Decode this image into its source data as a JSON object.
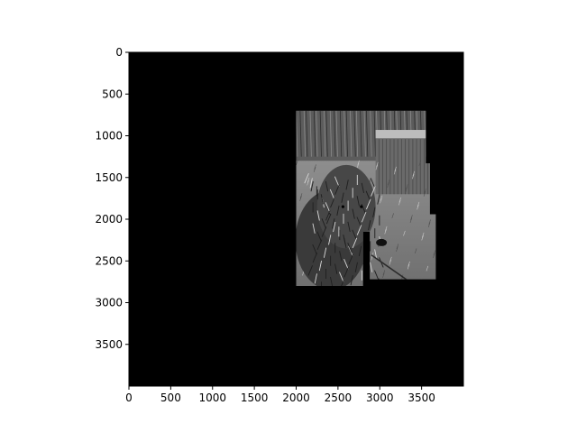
{
  "chart_data": {
    "type": "image",
    "title": "",
    "xlabel": "",
    "ylabel": "",
    "image_width": 4000,
    "image_height": 4000,
    "xlim": [
      0,
      4000
    ],
    "ylim": [
      4000,
      0
    ],
    "y_inverted": true,
    "grid": false,
    "background_color": "#000000",
    "image_description_icon": "grayscale-dog-photo-icon",
    "xticks": [
      {
        "value": 0,
        "label": "0"
      },
      {
        "value": 500,
        "label": "500"
      },
      {
        "value": 1000,
        "label": "1000"
      },
      {
        "value": 1500,
        "label": "1500"
      },
      {
        "value": 2000,
        "label": "2000"
      },
      {
        "value": 2500,
        "label": "2500"
      },
      {
        "value": 3000,
        "label": "3000"
      },
      {
        "value": 3500,
        "label": "3500"
      }
    ],
    "yticks": [
      {
        "value": 0,
        "label": "0"
      },
      {
        "value": 500,
        "label": "500"
      },
      {
        "value": 1000,
        "label": "1000"
      },
      {
        "value": 1500,
        "label": "1500"
      },
      {
        "value": 2000,
        "label": "2000"
      },
      {
        "value": 2500,
        "label": "2500"
      },
      {
        "value": 3000,
        "label": "3000"
      },
      {
        "value": 3500,
        "label": "3500"
      }
    ],
    "photo_regions": [
      {
        "x0": 2000,
        "y0": 700,
        "x1": 2800,
        "y1": 2800
      },
      {
        "x0": 2800,
        "y0": 700,
        "x1": 3550,
        "y1": 2150
      },
      {
        "x0": 2880,
        "y0": 2150,
        "x1": 3550,
        "y1": 2720
      },
      {
        "x0": 3550,
        "y0": 1330,
        "x1": 3600,
        "y1": 2720
      },
      {
        "x0": 3600,
        "y0": 1940,
        "x1": 3670,
        "y1": 2720
      }
    ]
  }
}
